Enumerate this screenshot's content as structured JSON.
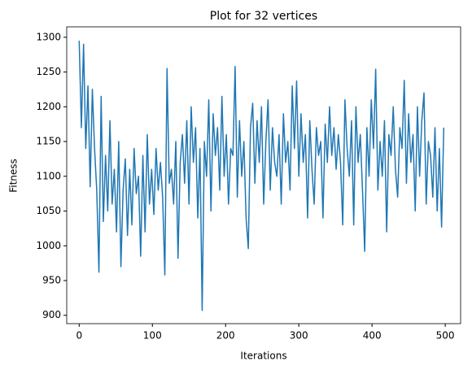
{
  "chart_data": {
    "type": "line",
    "title": "Plot for 32 vertices",
    "xlabel": "Iterations",
    "ylabel": "Fitness",
    "x": [
      0,
      3,
      6,
      9,
      12,
      15,
      18,
      21,
      24,
      27,
      30,
      33,
      36,
      39,
      42,
      45,
      48,
      51,
      54,
      57,
      60,
      63,
      66,
      69,
      72,
      75,
      78,
      81,
      84,
      87,
      90,
      93,
      96,
      99,
      102,
      105,
      108,
      111,
      114,
      117,
      120,
      123,
      126,
      129,
      132,
      135,
      138,
      141,
      144,
      147,
      150,
      153,
      156,
      159,
      162,
      165,
      168,
      171,
      174,
      177,
      180,
      183,
      186,
      189,
      192,
      195,
      198,
      201,
      204,
      207,
      210,
      213,
      216,
      219,
      222,
      225,
      228,
      231,
      234,
      237,
      240,
      243,
      246,
      249,
      252,
      255,
      258,
      261,
      264,
      267,
      270,
      273,
      276,
      279,
      282,
      285,
      288,
      291,
      294,
      297,
      300,
      303,
      306,
      309,
      312,
      315,
      318,
      321,
      324,
      327,
      330,
      333,
      336,
      339,
      342,
      345,
      348,
      351,
      354,
      357,
      360,
      363,
      366,
      369,
      372,
      375,
      378,
      381,
      384,
      387,
      390,
      393,
      396,
      399,
      402,
      405,
      408,
      411,
      414,
      417,
      420,
      423,
      426,
      429,
      432,
      435,
      438,
      441,
      444,
      447,
      450,
      453,
      456,
      459,
      462,
      465,
      468,
      471,
      474,
      477,
      480,
      483,
      486,
      489,
      492,
      495,
      498
    ],
    "series": [
      {
        "name": "Fitness",
        "color": "#1f77b4",
        "values": [
          1295,
          1170,
          1290,
          1140,
          1230,
          1085,
          1225,
          1140,
          1080,
          962,
          1215,
          1035,
          1130,
          1050,
          1180,
          1060,
          1110,
          1020,
          1150,
          970,
          1080,
          1125,
          1015,
          1110,
          1030,
          1140,
          1075,
          1100,
          985,
          1130,
          1020,
          1160,
          1060,
          1110,
          1045,
          1140,
          1080,
          1120,
          1070,
          958,
          1255,
          1090,
          1110,
          1060,
          1150,
          982,
          1120,
          1160,
          1090,
          1180,
          1060,
          1200,
          1120,
          1170,
          1040,
          1140,
          907,
          1150,
          1100,
          1210,
          1050,
          1190,
          1130,
          1170,
          1080,
          1215,
          1100,
          1160,
          1060,
          1140,
          1130,
          1258,
          1070,
          1180,
          1100,
          1150,
          1040,
          996,
          1170,
          1205,
          1090,
          1180,
          1120,
          1200,
          1060,
          1150,
          1210,
          1080,
          1170,
          1120,
          1100,
          1160,
          1060,
          1190,
          1120,
          1150,
          1080,
          1230,
          1140,
          1237,
          1100,
          1190,
          1120,
          1160,
          1040,
          1180,
          1110,
          1060,
          1170,
          1130,
          1150,
          1040,
          1175,
          1120,
          1200,
          1130,
          1170,
          1110,
          1160,
          1120,
          1030,
          1210,
          1140,
          1100,
          1180,
          1030,
          1200,
          1120,
          1160,
          1080,
          992,
          1170,
          1100,
          1210,
          1140,
          1254,
          1080,
          1150,
          1100,
          1180,
          1020,
          1160,
          1130,
          1200,
          1110,
          1070,
          1170,
          1140,
          1238,
          1090,
          1190,
          1120,
          1160,
          1050,
          1200,
          1100,
          1180,
          1220,
          1060,
          1150,
          1130,
          1070,
          1170,
          1050,
          1140,
          1027,
          1170
        ]
      }
    ],
    "xlim": [
      -17,
      521
    ],
    "xticks": [
      0,
      100,
      200,
      300,
      400,
      500
    ],
    "ylim": [
      888,
      1315
    ],
    "yticks": [
      900,
      950,
      1000,
      1050,
      1100,
      1150,
      1200,
      1250,
      1300
    ]
  }
}
